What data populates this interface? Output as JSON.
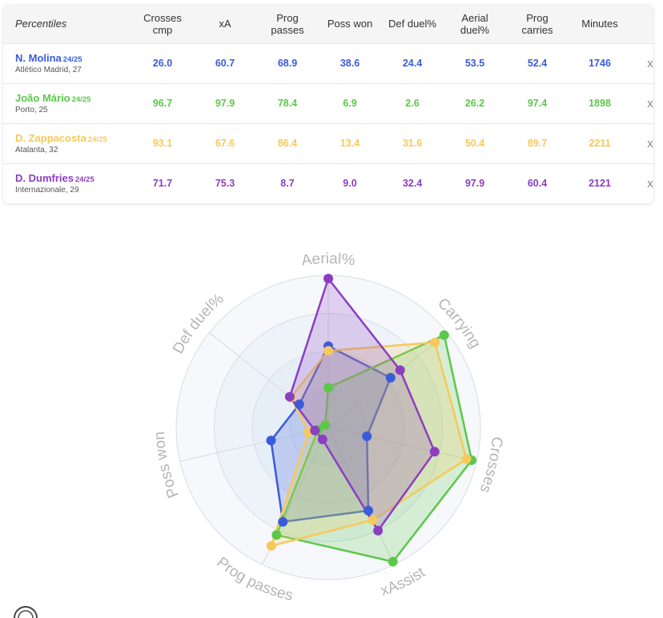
{
  "table": {
    "headers": [
      "Percentiles",
      "Crosses cmp",
      "xA",
      "Prog passes",
      "Poss won",
      "Def duel%",
      "Aerial duel%",
      "Prog carries",
      "Minutes"
    ],
    "remove_symbol": "x",
    "players": [
      {
        "name": "N. Molina",
        "season": "24/25",
        "club": "Atlético Madrid, 27",
        "color": "#3b5bdb",
        "stats": [
          "26.0",
          "60.7",
          "68.9",
          "38.6",
          "24.4",
          "53.5",
          "52.4",
          "1746"
        ]
      },
      {
        "name": "João Mário",
        "season": "24/25",
        "club": "Porto, 25",
        "color": "#5cc84a",
        "stats": [
          "96.7",
          "97.9",
          "78.4",
          "6.9",
          "2.6",
          "26.2",
          "97.4",
          "1898"
        ]
      },
      {
        "name": "D. Zappacosta",
        "season": "24/25",
        "club": "Atalanta, 32",
        "color": "#f5c95b",
        "stats": [
          "93.1",
          "67.6",
          "86.4",
          "13.4",
          "31.6",
          "50.4",
          "89.7",
          "2211"
        ]
      },
      {
        "name": "D. Dumfries",
        "season": "24/25",
        "club": "Internazionale, 29",
        "color": "#8b3ec0",
        "stats": [
          "71.7",
          "75.3",
          "8.7",
          "9.0",
          "32.4",
          "97.9",
          "60.4",
          "2121"
        ]
      }
    ]
  },
  "chart_data": {
    "type": "radar",
    "axes": [
      "Aerial%",
      "Carrying",
      "Crosses",
      "xAssist",
      "Prog passes",
      "Poss won",
      "Def duel%"
    ],
    "range": [
      0,
      100
    ],
    "grid": true,
    "series": [
      {
        "name": "N. Molina",
        "color": "#3b5bdb",
        "values": [
          53.5,
          52.4,
          26.0,
          60.7,
          68.9,
          38.6,
          24.4
        ]
      },
      {
        "name": "João Mário",
        "color": "#5cc84a",
        "values": [
          26.2,
          97.4,
          96.7,
          97.9,
          78.4,
          6.9,
          2.6
        ]
      },
      {
        "name": "D. Zappacosta",
        "color": "#f5c95b",
        "values": [
          50.4,
          89.7,
          93.1,
          67.6,
          86.4,
          13.4,
          31.6
        ]
      },
      {
        "name": "D. Dumfries",
        "color": "#8b3ec0",
        "values": [
          97.9,
          60.4,
          71.7,
          75.3,
          8.7,
          9.0,
          32.4
        ]
      }
    ]
  }
}
